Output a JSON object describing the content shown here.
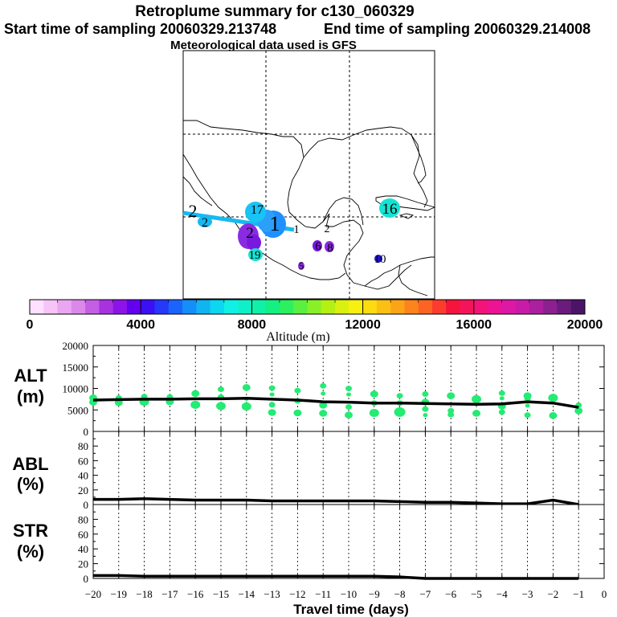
{
  "title": "Retroplume summary for c130_060329",
  "start_label": "Start time of sampling 20060329.213748",
  "end_label": "End time of sampling 20060329.214008",
  "met_label": "Meteorological data used is GFS",
  "colorbar": {
    "ticks": [
      "0",
      "4000",
      "8000",
      "12000",
      "16000",
      "20000"
    ],
    "label": "Altitude (m)",
    "colors": [
      "#ffe0ff",
      "#f6c4f6",
      "#eaa6f0",
      "#dc88ea",
      "#c45ee4",
      "#a832e0",
      "#8c14e8",
      "#6400f0",
      "#3a10f4",
      "#2638f8",
      "#1a64fc",
      "#148ef8",
      "#10b4f0",
      "#0cd6f0",
      "#10f0e4",
      "#10f0c8",
      "#10f0a6",
      "#14f082",
      "#2cf060",
      "#5af040",
      "#88f028",
      "#b4f014",
      "#daf010",
      "#f8f010",
      "#fcdc10",
      "#fcc014",
      "#fca418",
      "#fc841c",
      "#fc6424",
      "#fc3c2c",
      "#f4143c",
      "#f4145c",
      "#f41478",
      "#ec1494",
      "#dc18a4",
      "#c81ca8",
      "#ac20a0",
      "#8c2090",
      "#6a1c7c",
      "#4c1466"
    ],
    "plume_colors": {
      "blue": "#1e90ff",
      "lightblue": "#19c3f5",
      "cyan": "#16e3d2",
      "violet": "#8a2be2",
      "purple": "#7a18e0",
      "darkblue": "#2010d8",
      "green": "#22ec72"
    }
  },
  "map": {
    "labels": [
      {
        "text": "1",
        "color": "blue",
        "big": true
      },
      {
        "text": "1",
        "color": "blue",
        "big": false
      },
      {
        "text": "2",
        "color": "violet",
        "big": false
      },
      {
        "text": "2",
        "color": "lightblue",
        "big": false
      },
      {
        "text": "2",
        "color": "lightblue",
        "big": true
      },
      {
        "text": "2",
        "color": "none",
        "big": false
      },
      {
        "text": "17",
        "color": "cyan",
        "big": false
      },
      {
        "text": "19",
        "color": "cyan",
        "big": false
      },
      {
        "text": "16",
        "color": "cyan",
        "big": false
      },
      {
        "text": "6",
        "color": "purple",
        "big": false
      },
      {
        "text": "8",
        "color": "purple",
        "big": false
      },
      {
        "text": "5",
        "color": "purple",
        "big": false
      },
      {
        "text": "10",
        "color": "darkblue",
        "big": false
      }
    ]
  },
  "panels": {
    "alt": {
      "label_top": "ALT",
      "label_bottom": "(m)"
    },
    "abl": {
      "label_top": "ABL",
      "label_bottom": "(%)"
    },
    "str": {
      "label_top": "STR",
      "label_bottom": "(%)"
    }
  },
  "xaxis": {
    "title": "Travel time (days)"
  },
  "chart_data": [
    {
      "type": "scatter",
      "panel": "alt",
      "title": "ALT (m)",
      "xlabel": "Travel time (days)",
      "ylabel": "ALT (m)",
      "xlim": [
        -20,
        0
      ],
      "ylim": [
        0,
        20000
      ],
      "xticks": [
        -20,
        -19,
        -18,
        -17,
        -16,
        -15,
        -14,
        -13,
        -12,
        -11,
        -10,
        -9,
        -8,
        -7,
        -6,
        -5,
        -4,
        -3,
        -2,
        -1,
        0
      ],
      "ytick_labels": [
        "0",
        "5000",
        "10000",
        "15000",
        "20000"
      ],
      "yticks": [
        0,
        5000,
        10000,
        15000,
        20000
      ],
      "points": [
        {
          "x": -20,
          "y": 6800,
          "s": 5
        },
        {
          "x": -20,
          "y": 7800,
          "s": 5
        },
        {
          "x": -19,
          "y": 6700,
          "s": 5
        },
        {
          "x": -19,
          "y": 7800,
          "s": 4
        },
        {
          "x": -18,
          "y": 6900,
          "s": 6
        },
        {
          "x": -18,
          "y": 8100,
          "s": 4
        },
        {
          "x": -17,
          "y": 6900,
          "s": 5
        },
        {
          "x": -17,
          "y": 8000,
          "s": 4
        },
        {
          "x": -16,
          "y": 6200,
          "s": 6
        },
        {
          "x": -16,
          "y": 8800,
          "s": 5
        },
        {
          "x": -15,
          "y": 5900,
          "s": 6
        },
        {
          "x": -15,
          "y": 8000,
          "s": 4
        },
        {
          "x": -15,
          "y": 9800,
          "s": 4
        },
        {
          "x": -14,
          "y": 5800,
          "s": 6
        },
        {
          "x": -14,
          "y": 7600,
          "s": 3
        },
        {
          "x": -14,
          "y": 10200,
          "s": 5
        },
        {
          "x": -13,
          "y": 4400,
          "s": 5
        },
        {
          "x": -13,
          "y": 6200,
          "s": 4
        },
        {
          "x": -13,
          "y": 8600,
          "s": 3
        },
        {
          "x": -13,
          "y": 10100,
          "s": 4
        },
        {
          "x": -12,
          "y": 4300,
          "s": 5
        },
        {
          "x": -12,
          "y": 7100,
          "s": 4
        },
        {
          "x": -12,
          "y": 9500,
          "s": 4
        },
        {
          "x": -11,
          "y": 4200,
          "s": 5
        },
        {
          "x": -11,
          "y": 6100,
          "s": 5
        },
        {
          "x": -11,
          "y": 8800,
          "s": 3
        },
        {
          "x": -11,
          "y": 10600,
          "s": 4
        },
        {
          "x": -10,
          "y": 3800,
          "s": 5
        },
        {
          "x": -10,
          "y": 5700,
          "s": 4
        },
        {
          "x": -10,
          "y": 8600,
          "s": 3
        },
        {
          "x": -10,
          "y": 10000,
          "s": 4
        },
        {
          "x": -9,
          "y": 4300,
          "s": 6
        },
        {
          "x": -9,
          "y": 6600,
          "s": 4
        },
        {
          "x": -9,
          "y": 8700,
          "s": 5
        },
        {
          "x": -8,
          "y": 4500,
          "s": 7
        },
        {
          "x": -8,
          "y": 6600,
          "s": 4
        },
        {
          "x": -8,
          "y": 8300,
          "s": 4
        },
        {
          "x": -7,
          "y": 3800,
          "s": 3
        },
        {
          "x": -7,
          "y": 5200,
          "s": 4
        },
        {
          "x": -7,
          "y": 6800,
          "s": 5
        },
        {
          "x": -7,
          "y": 8700,
          "s": 4
        },
        {
          "x": -6,
          "y": 3900,
          "s": 4
        },
        {
          "x": -6,
          "y": 4800,
          "s": 4
        },
        {
          "x": -6,
          "y": 8300,
          "s": 5
        },
        {
          "x": -5,
          "y": 4200,
          "s": 5
        },
        {
          "x": -5,
          "y": 7500,
          "s": 6
        },
        {
          "x": -4,
          "y": 4500,
          "s": 4
        },
        {
          "x": -4,
          "y": 5900,
          "s": 5
        },
        {
          "x": -4,
          "y": 7700,
          "s": 3
        },
        {
          "x": -4,
          "y": 8900,
          "s": 4
        },
        {
          "x": -3,
          "y": 3800,
          "s": 4
        },
        {
          "x": -3,
          "y": 6000,
          "s": 3
        },
        {
          "x": -3,
          "y": 7600,
          "s": 4
        },
        {
          "x": -3,
          "y": 8300,
          "s": 5
        },
        {
          "x": -2,
          "y": 3700,
          "s": 5
        },
        {
          "x": -2,
          "y": 7800,
          "s": 6
        },
        {
          "x": -1,
          "y": 4800,
          "s": 5
        },
        {
          "x": -1,
          "y": 6100,
          "s": 4
        }
      ],
      "mean_line": {
        "x": [
          -20,
          -19,
          -18,
          -17,
          -16,
          -15,
          -14,
          -13,
          -12,
          -11,
          -10,
          -9,
          -8,
          -7,
          -6,
          -5,
          -4,
          -3,
          -2,
          -1
        ],
        "y": [
          7300,
          7400,
          7500,
          7500,
          7600,
          7600,
          7700,
          7500,
          7300,
          6900,
          6800,
          6600,
          6600,
          6500,
          6400,
          6300,
          6400,
          6900,
          6600,
          5600
        ]
      }
    },
    {
      "type": "line",
      "panel": "abl",
      "title": "ABL (%)",
      "xlabel": "Travel time (days)",
      "ylabel": "ABL (%)",
      "xlim": [
        -20,
        0
      ],
      "ylim": [
        0,
        100
      ],
      "xticks": [
        -20,
        -19,
        -18,
        -17,
        -16,
        -15,
        -14,
        -13,
        -12,
        -11,
        -10,
        -9,
        -8,
        -7,
        -6,
        -5,
        -4,
        -3,
        -2,
        -1,
        0
      ],
      "ytick_labels": [
        "0",
        "20",
        "40",
        "60",
        "80"
      ],
      "yticks": [
        0,
        20,
        40,
        60,
        80
      ],
      "x": [
        -20,
        -19,
        -18,
        -17,
        -16,
        -15,
        -14,
        -13,
        -12,
        -11,
        -10,
        -9,
        -8,
        -7,
        -6,
        -5,
        -4,
        -3,
        -2,
        -1
      ],
      "y": [
        7,
        7,
        8,
        7,
        6,
        6,
        6,
        5,
        5,
        5,
        5,
        5,
        4,
        3,
        3,
        2,
        1,
        1,
        6,
        0
      ]
    },
    {
      "type": "line",
      "panel": "str",
      "title": "STR (%)",
      "xlabel": "Travel time (days)",
      "ylabel": "STR (%)",
      "xlim": [
        -20,
        0
      ],
      "ylim": [
        0,
        100
      ],
      "xticks": [
        -20,
        -19,
        -18,
        -17,
        -16,
        -15,
        -14,
        -13,
        -12,
        -11,
        -10,
        -9,
        -8,
        -7,
        -6,
        -5,
        -4,
        -3,
        -2,
        -1,
        0
      ],
      "ytick_labels": [
        "0",
        "20",
        "40",
        "60",
        "80"
      ],
      "yticks": [
        0,
        20,
        40,
        60,
        80
      ],
      "x": [
        -20,
        -19,
        -18,
        -17,
        -16,
        -15,
        -14,
        -13,
        -12,
        -11,
        -10,
        -9,
        -8,
        -7,
        -6,
        -5,
        -4,
        -3,
        -2,
        -1
      ],
      "y": [
        4,
        4,
        3,
        3,
        3,
        3,
        3,
        3,
        3,
        3,
        3,
        3,
        2,
        0,
        0,
        0,
        0,
        0,
        0,
        0
      ]
    }
  ]
}
